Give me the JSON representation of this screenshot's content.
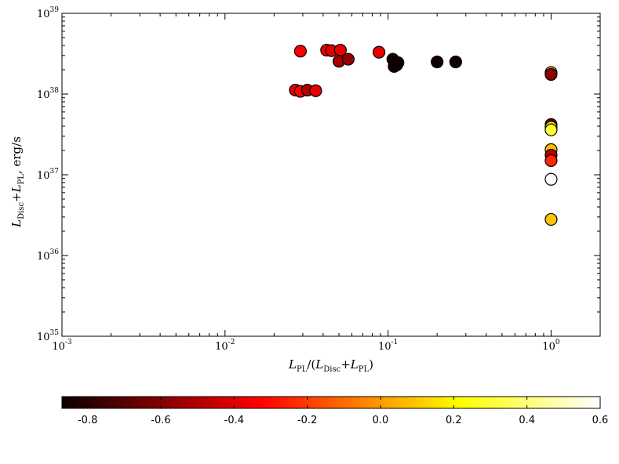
{
  "chart_data": {
    "type": "scatter",
    "xlabel": "L_PL/(L_Disc+L_PL)",
    "ylabel": "L_Disc+L_PL, erg/s",
    "x_scale": "log",
    "y_scale": "log",
    "xlim": [
      0.001,
      2
    ],
    "ylim": [
      1e+35,
      1e+39
    ],
    "x_ticks": [
      {
        "value": 0.001,
        "base": "10",
        "exp": "-3"
      },
      {
        "value": 0.01,
        "base": "10",
        "exp": "-2"
      },
      {
        "value": 0.1,
        "base": "10",
        "exp": "-1"
      },
      {
        "value": 1,
        "base": "10",
        "exp": "0"
      }
    ],
    "y_ticks": [
      {
        "value": 1e+35,
        "base": "10",
        "exp": "35"
      },
      {
        "value": 1e+36,
        "base": "10",
        "exp": "36"
      },
      {
        "value": 1e+37,
        "base": "10",
        "exp": "37"
      },
      {
        "value": 1e+38,
        "base": "10",
        "exp": "38"
      },
      {
        "value": 1e+39,
        "base": "10",
        "exp": "39"
      }
    ],
    "colorbar": {
      "range": [
        -0.87,
        0.6
      ],
      "ticks": [
        "-0.8",
        "-0.6",
        "-0.4",
        "-0.2",
        "0.0",
        "0.2",
        "0.4",
        "0.6"
      ],
      "tick_values": [
        -0.8,
        -0.6,
        -0.4,
        -0.2,
        0.0,
        0.2,
        0.4,
        0.6
      ],
      "colormap": "hot"
    },
    "points": [
      {
        "x": 0.029,
        "y": 3.4e+38,
        "c": -0.35
      },
      {
        "x": 0.042,
        "y": 3.5e+38,
        "c": -0.38
      },
      {
        "x": 0.045,
        "y": 3.45e+38,
        "c": -0.42
      },
      {
        "x": 0.051,
        "y": 3.5e+38,
        "c": -0.4
      },
      {
        "x": 0.05,
        "y": 2.55e+38,
        "c": -0.55
      },
      {
        "x": 0.057,
        "y": 2.7e+38,
        "c": -0.58
      },
      {
        "x": 0.088,
        "y": 3.3e+38,
        "c": -0.4
      },
      {
        "x": 0.027,
        "y": 1.12e+38,
        "c": -0.42
      },
      {
        "x": 0.029,
        "y": 1.08e+38,
        "c": -0.36
      },
      {
        "x": 0.032,
        "y": 1.12e+38,
        "c": -0.52
      },
      {
        "x": 0.036,
        "y": 1.1e+38,
        "c": -0.4
      },
      {
        "x": 0.107,
        "y": 2.7e+38,
        "c": -0.85
      },
      {
        "x": 0.109,
        "y": 2.2e+38,
        "c": -0.85
      },
      {
        "x": 0.113,
        "y": 2.3e+38,
        "c": -0.84
      },
      {
        "x": 0.115,
        "y": 2.45e+38,
        "c": -0.86
      },
      {
        "x": 0.2,
        "y": 2.5e+38,
        "c": -0.86
      },
      {
        "x": 0.26,
        "y": 2.5e+38,
        "c": -0.86
      },
      {
        "x": 1.0,
        "y": 1.85e+38,
        "c": 0.05
      },
      {
        "x": 1.0,
        "y": 1.75e+38,
        "c": -0.6
      },
      {
        "x": 1.0,
        "y": 4.2e+37,
        "c": -0.7
      },
      {
        "x": 1.0,
        "y": 3.9e+37,
        "c": 0.12
      },
      {
        "x": 1.0,
        "y": 3.6e+37,
        "c": 0.3
      },
      {
        "x": 1.0,
        "y": 2.05e+37,
        "c": 0.08
      },
      {
        "x": 1.0,
        "y": 1.75e+37,
        "c": -0.5
      },
      {
        "x": 1.0,
        "y": 1.5e+37,
        "c": -0.25
      },
      {
        "x": 1.0,
        "y": 8.8e+36,
        "c": 0.6
      },
      {
        "x": 1.0,
        "y": 2.8e+36,
        "c": 0.1
      }
    ]
  }
}
